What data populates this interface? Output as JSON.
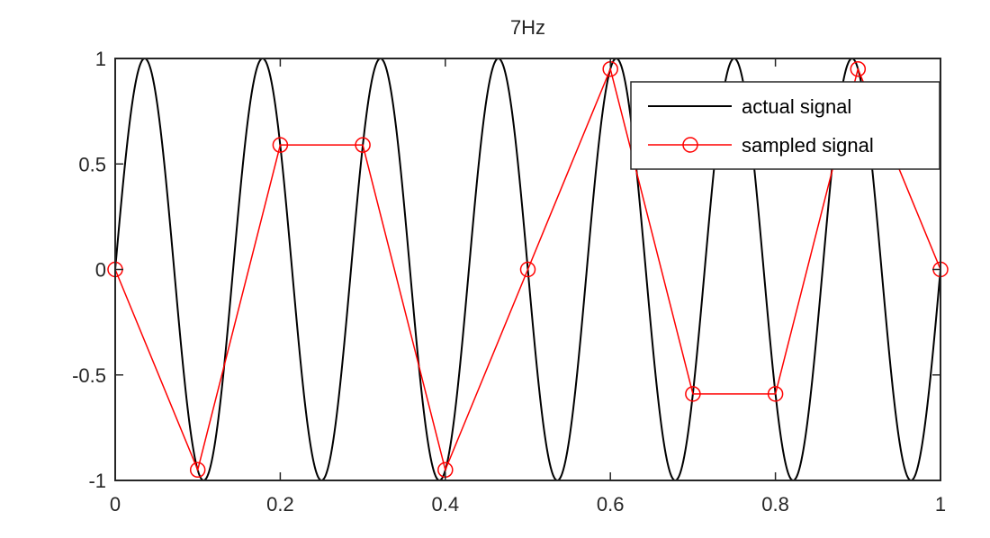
{
  "chart_data": {
    "type": "line",
    "title": "7Hz",
    "xlabel": "",
    "ylabel": "",
    "xlim": [
      0,
      1
    ],
    "ylim": [
      -1,
      1
    ],
    "x_ticks": [
      "0",
      "0.2",
      "0.4",
      "0.6",
      "0.8",
      "1"
    ],
    "y_ticks": [
      "1",
      "0.5",
      "0",
      "-0.5",
      "-1"
    ],
    "grid": false,
    "legend_position": "upper right",
    "series": [
      {
        "name": "actual signal",
        "color": "#000000",
        "marker": "none",
        "function": "sin(2*pi*7*t)",
        "frequency_hz": 7
      },
      {
        "name": "sampled signal",
        "color": "#ff0000",
        "marker": "circle",
        "x": [
          0,
          0.1,
          0.2,
          0.3,
          0.4,
          0.5,
          0.6,
          0.7,
          0.8,
          0.9,
          1.0
        ],
        "values": [
          0,
          -0.95,
          0.59,
          0.59,
          -0.95,
          0,
          0.95,
          -0.59,
          -0.59,
          0.95,
          0
        ]
      }
    ]
  },
  "legend": {
    "item1": "actual signal",
    "item2": "sampled signal"
  },
  "title": "7Hz"
}
